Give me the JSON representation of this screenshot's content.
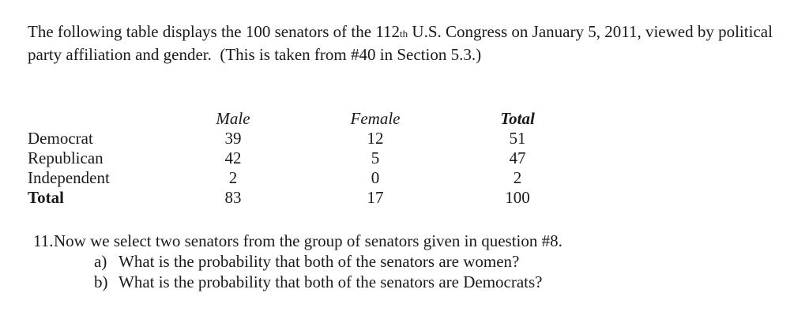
{
  "page": {
    "background": "#ffffff",
    "text_color": "#1a1a1a"
  },
  "intro": {
    "line_prefix": "The following table displays the 100 senators of the 112",
    "ordinal_suffix": "th",
    "line_suffix": " U.S. Congress on January 5, 2011, viewed by political party affiliation and gender.  (This is taken from #40 in Section 5.3.)"
  },
  "table": {
    "columns": [
      "Male",
      "Female",
      "Total"
    ],
    "rows": [
      {
        "label": "Democrat",
        "male": "39",
        "female": "12",
        "total": "51"
      },
      {
        "label": "Republican",
        "male": "42",
        "female": "5",
        "total": "47"
      },
      {
        "label": "Independent",
        "male": "2",
        "female": "0",
        "total": "2"
      },
      {
        "label": "Total",
        "male": "83",
        "female": "17",
        "total": "100"
      }
    ]
  },
  "question": {
    "number": "11.",
    "text": "Now we select two senators from the group of senators given in question #8.",
    "parts": [
      {
        "label": "a)",
        "text": "What is the probability that both of the senators are women?"
      },
      {
        "label": "b)",
        "text": "What is the probability that both of the senators are Democrats?"
      }
    ]
  }
}
